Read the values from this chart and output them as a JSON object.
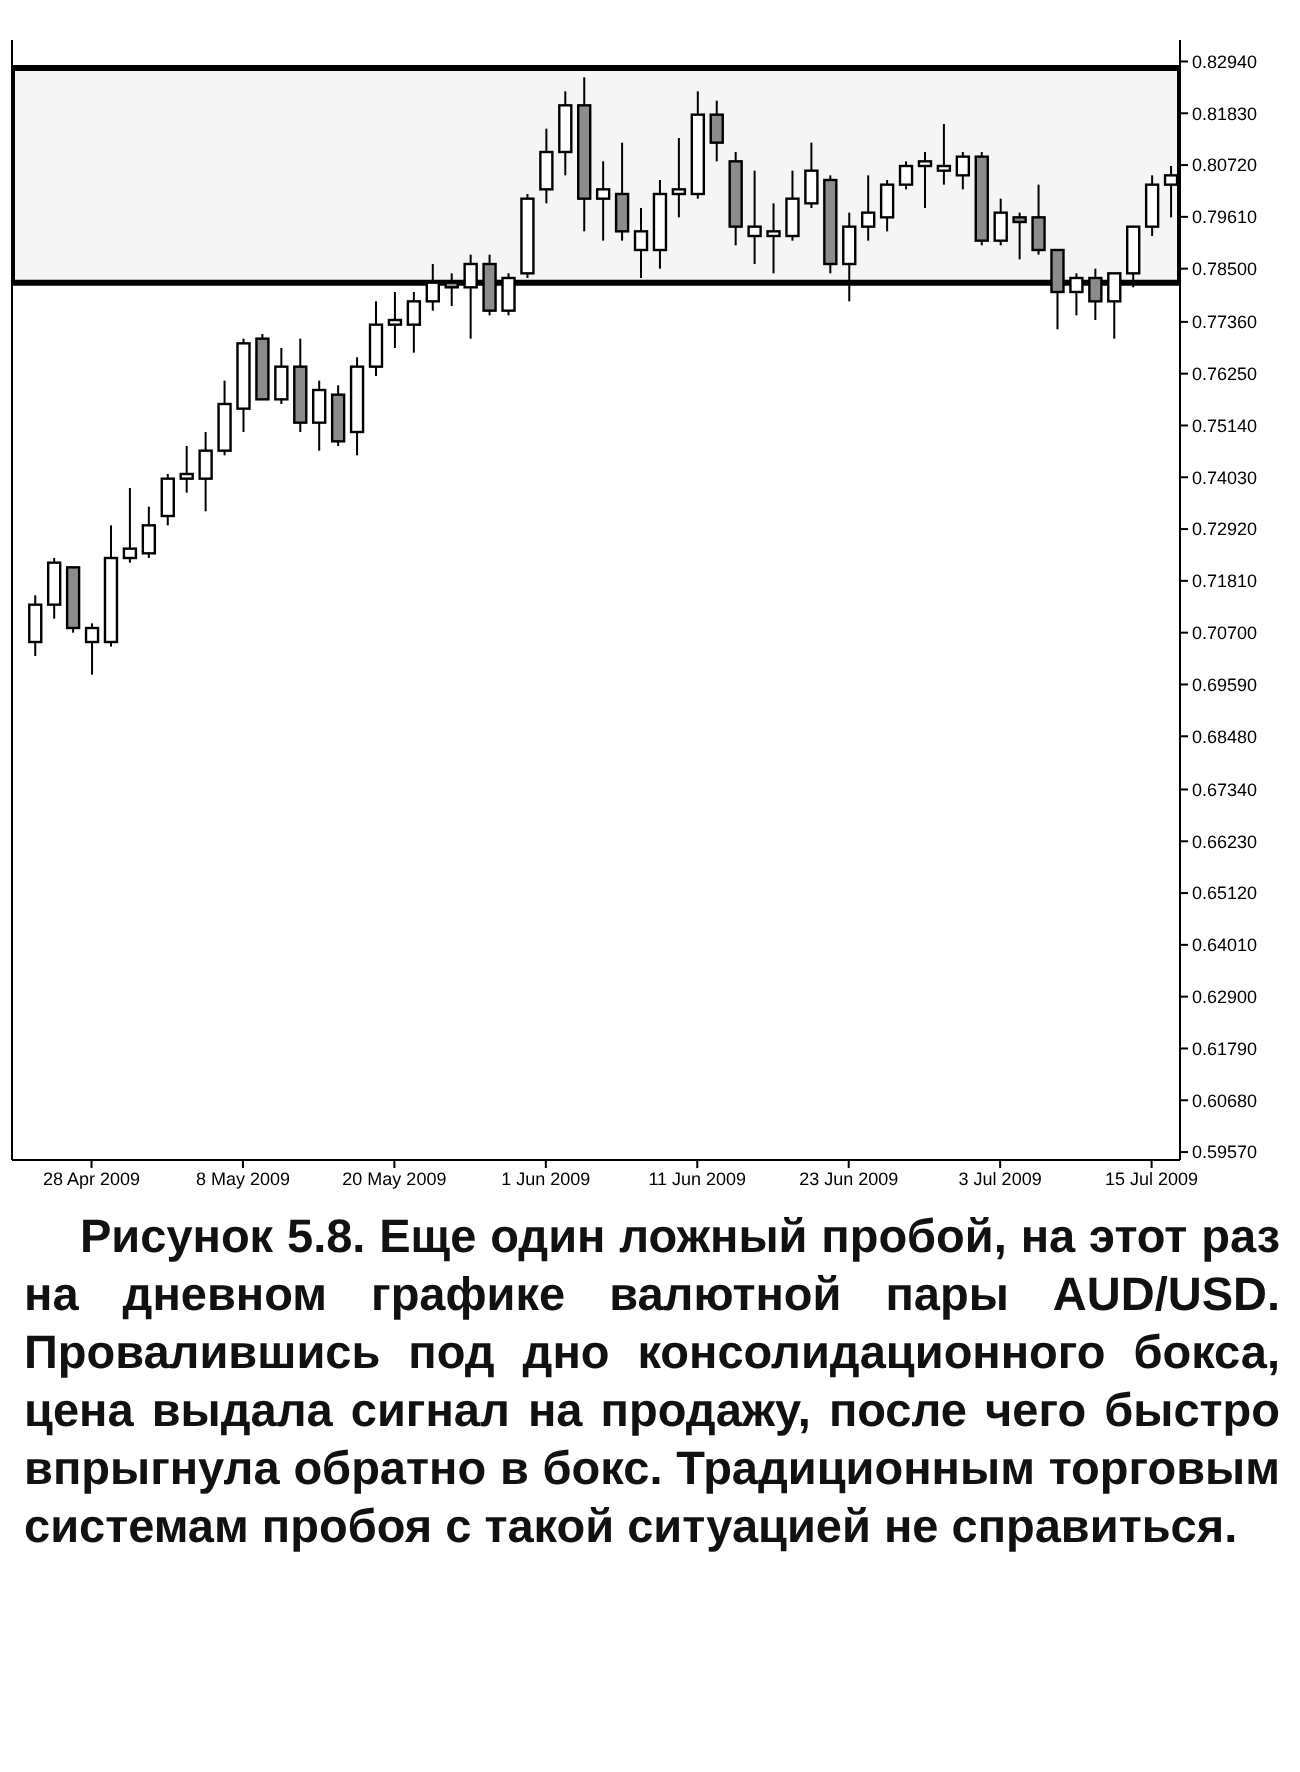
{
  "chart_data": {
    "type": "candlestick",
    "categories": [
      null,
      null,
      null,
      "28 Apr 2009",
      null,
      null,
      null,
      null,
      null,
      null,
      null,
      "8 May 2009",
      null,
      null,
      null,
      null,
      null,
      null,
      null,
      "20 May 2009",
      null,
      null,
      null,
      null,
      null,
      null,
      null,
      "1 Jun 2009",
      null,
      null,
      null,
      null,
      null,
      null,
      null,
      "11 Jun 2009",
      null,
      null,
      null,
      null,
      null,
      null,
      null,
      "23 Jun 2009",
      null,
      null,
      null,
      null,
      null,
      null,
      null,
      "3 Jul 2009",
      null,
      null,
      null,
      null,
      null,
      null,
      null,
      "15 Jul 2009",
      null
    ],
    "ohlc": [
      [
        0.705,
        0.715,
        0.702,
        0.713
      ],
      [
        0.713,
        0.723,
        0.71,
        0.722
      ],
      [
        0.721,
        0.721,
        0.707,
        0.708
      ],
      [
        0.705,
        0.709,
        0.698,
        0.708
      ],
      [
        0.705,
        0.73,
        0.704,
        0.723
      ],
      [
        0.723,
        0.738,
        0.722,
        0.725
      ],
      [
        0.724,
        0.734,
        0.723,
        0.73
      ],
      [
        0.732,
        0.741,
        0.73,
        0.74
      ],
      [
        0.74,
        0.747,
        0.737,
        0.741
      ],
      [
        0.74,
        0.75,
        0.733,
        0.746
      ],
      [
        0.746,
        0.761,
        0.745,
        0.756
      ],
      [
        0.755,
        0.77,
        0.75,
        0.769
      ],
      [
        0.77,
        0.771,
        0.757,
        0.757
      ],
      [
        0.757,
        0.768,
        0.756,
        0.764
      ],
      [
        0.764,
        0.77,
        0.75,
        0.752
      ],
      [
        0.752,
        0.761,
        0.746,
        0.759
      ],
      [
        0.758,
        0.76,
        0.747,
        0.748
      ],
      [
        0.75,
        0.766,
        0.745,
        0.764
      ],
      [
        0.764,
        0.778,
        0.762,
        0.773
      ],
      [
        0.773,
        0.78,
        0.768,
        0.774
      ],
      [
        0.773,
        0.78,
        0.767,
        0.778
      ],
      [
        0.778,
        0.786,
        0.776,
        0.782
      ],
      [
        0.782,
        0.784,
        0.777,
        0.781
      ],
      [
        0.781,
        0.788,
        0.77,
        0.786
      ],
      [
        0.786,
        0.788,
        0.775,
        0.776
      ],
      [
        0.776,
        0.784,
        0.775,
        0.783
      ],
      [
        0.784,
        0.801,
        0.783,
        0.8
      ],
      [
        0.802,
        0.815,
        0.799,
        0.81
      ],
      [
        0.81,
        0.823,
        0.805,
        0.82
      ],
      [
        0.82,
        0.826,
        0.793,
        0.8
      ],
      [
        0.8,
        0.808,
        0.791,
        0.802
      ],
      [
        0.801,
        0.812,
        0.791,
        0.793
      ],
      [
        0.789,
        0.798,
        0.783,
        0.793
      ],
      [
        0.789,
        0.804,
        0.785,
        0.801
      ],
      [
        0.801,
        0.813,
        0.796,
        0.802
      ],
      [
        0.801,
        0.823,
        0.8,
        0.818
      ],
      [
        0.818,
        0.821,
        0.808,
        0.812
      ],
      [
        0.808,
        0.81,
        0.79,
        0.794
      ],
      [
        0.792,
        0.806,
        0.786,
        0.794
      ],
      [
        0.792,
        0.799,
        0.784,
        0.793
      ],
      [
        0.792,
        0.806,
        0.791,
        0.8
      ],
      [
        0.799,
        0.812,
        0.798,
        0.806
      ],
      [
        0.804,
        0.805,
        0.784,
        0.786
      ],
      [
        0.786,
        0.797,
        0.778,
        0.794
      ],
      [
        0.794,
        0.805,
        0.791,
        0.797
      ],
      [
        0.796,
        0.804,
        0.793,
        0.803
      ],
      [
        0.803,
        0.808,
        0.802,
        0.807
      ],
      [
        0.807,
        0.81,
        0.798,
        0.808
      ],
      [
        0.806,
        0.816,
        0.803,
        0.807
      ],
      [
        0.805,
        0.81,
        0.802,
        0.809
      ],
      [
        0.809,
        0.81,
        0.79,
        0.791
      ],
      [
        0.791,
        0.8,
        0.79,
        0.797
      ],
      [
        0.796,
        0.797,
        0.787,
        0.795
      ],
      [
        0.796,
        0.803,
        0.788,
        0.789
      ],
      [
        0.789,
        0.789,
        0.772,
        0.78
      ],
      [
        0.78,
        0.784,
        0.775,
        0.783
      ],
      [
        0.783,
        0.785,
        0.774,
        0.778
      ],
      [
        0.778,
        0.784,
        0.77,
        0.784
      ],
      [
        0.784,
        0.794,
        0.781,
        0.794
      ],
      [
        0.794,
        0.805,
        0.792,
        0.803
      ],
      [
        0.803,
        0.807,
        0.796,
        0.805
      ]
    ],
    "ylim": [
      0.594,
      0.834
    ],
    "yticks": [
      {
        "value": 0.8294,
        "label": "0.82940"
      },
      {
        "value": 0.8183,
        "label": "0.81830"
      },
      {
        "value": 0.8072,
        "label": "0.80720"
      },
      {
        "value": 0.7961,
        "label": "0.79610"
      },
      {
        "value": 0.785,
        "label": "0.78500"
      },
      {
        "value": 0.7736,
        "label": "0.77360"
      },
      {
        "value": 0.7625,
        "label": "0.76250"
      },
      {
        "value": 0.7514,
        "label": "0.75140"
      },
      {
        "value": 0.7403,
        "label": "0.74030"
      },
      {
        "value": 0.7292,
        "label": "0.72920"
      },
      {
        "value": 0.7181,
        "label": "0.71810"
      },
      {
        "value": 0.707,
        "label": "0.70700"
      },
      {
        "value": 0.6959,
        "label": "0.69590"
      },
      {
        "value": 0.6848,
        "label": "0.68480"
      },
      {
        "value": 0.6734,
        "label": "0.67340"
      },
      {
        "value": 0.6623,
        "label": "0.66230"
      },
      {
        "value": 0.6512,
        "label": "0.65120"
      },
      {
        "value": 0.6401,
        "label": "0.64010"
      },
      {
        "value": 0.629,
        "label": "0.62900"
      },
      {
        "value": 0.6179,
        "label": "0.61790"
      },
      {
        "value": 0.6068,
        "label": "0.60680"
      },
      {
        "value": 0.5957,
        "label": "0.59570"
      }
    ],
    "bands": [
      {
        "axis": "y",
        "from": 0.782,
        "to": 0.828,
        "color": "#000000"
      }
    ],
    "grid": false,
    "legend": false,
    "annotations": [
      "Рисунок 5.8. Еще один ложный пробой, на этот раз на дневном графике валютной пары AUD/USD. Провалившись под дно консолидационного бокса, цена выдала сигнал на продажу, после чего быстро впрыгнула обратно в бокс. Традиционным торговым системам пробоя с такой ситуацией не справиться."
    ]
  }
}
